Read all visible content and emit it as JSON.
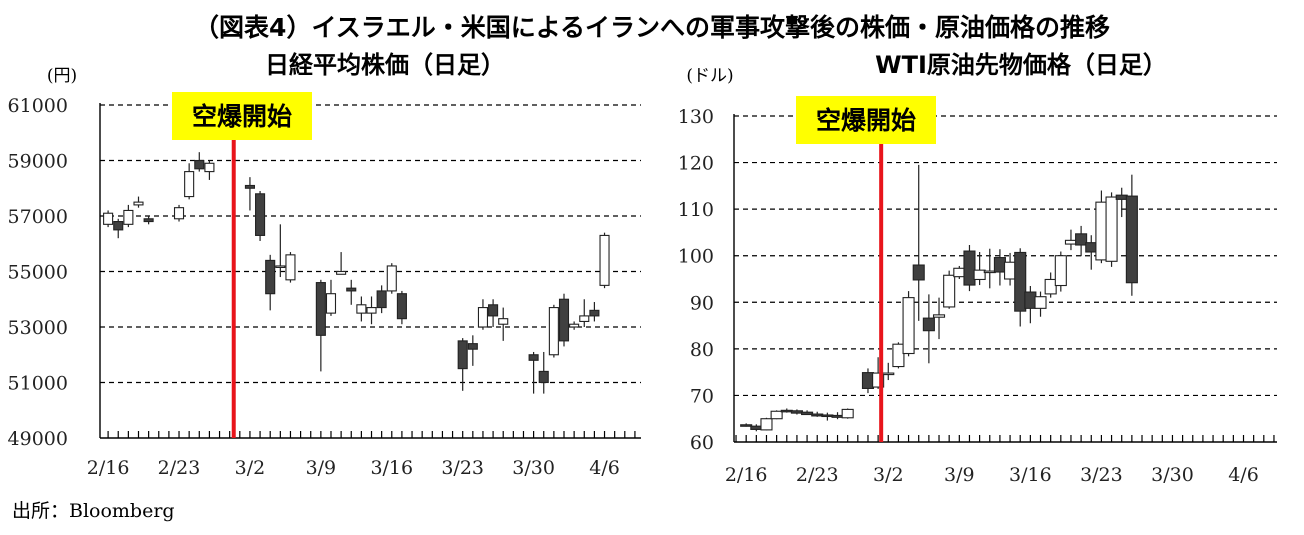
{
  "title": "（図表4）イスラエル・米国によるイランへの軍事攻撃後の株価・原油価格の推移",
  "source": "出所：Bloomberg",
  "colors": {
    "bullish_fill": "#ffffff",
    "bearish_fill": "#404040",
    "candle_stroke": "#222222",
    "event_line": "#e8141b",
    "event_box": "#ffff00",
    "grid": "#000000"
  },
  "chart_data": [
    {
      "type": "candlestick",
      "title": "日経平均株価（日足）",
      "ylabel": "(円)",
      "ylim": [
        49000,
        61000
      ],
      "yticks": [
        49000,
        51000,
        53000,
        55000,
        57000,
        59000,
        61000
      ],
      "xtick_labels": [
        "2/16",
        "2/23",
        "3/2",
        "3/9",
        "3/16",
        "3/23",
        "3/30",
        "4/6"
      ],
      "xtick_days": [
        0,
        7,
        14,
        21,
        28,
        35,
        42,
        49
      ],
      "day_range": [
        -0.8,
        52.6
      ],
      "grid": "dashed-horizontal",
      "annotation": {
        "label": "空爆開始",
        "day": 12.4
      },
      "candles": [
        {
          "day": 0,
          "o": 56700,
          "h": 57200,
          "l": 56600,
          "c": 57100
        },
        {
          "day": 1,
          "o": 56800,
          "h": 56900,
          "l": 56200,
          "c": 56500
        },
        {
          "day": 2,
          "o": 56700,
          "h": 57400,
          "l": 56600,
          "c": 57200
        },
        {
          "day": 3,
          "o": 57400,
          "h": 57700,
          "l": 57300,
          "c": 57500
        },
        {
          "day": 4,
          "o": 56900,
          "h": 57000,
          "l": 56700,
          "c": 56800
        },
        {
          "day": 7,
          "o": 56900,
          "h": 57400,
          "l": 56800,
          "c": 57300
        },
        {
          "day": 8,
          "o": 57700,
          "h": 58900,
          "l": 57600,
          "c": 58600
        },
        {
          "day": 9,
          "o": 59000,
          "h": 59300,
          "l": 58600,
          "c": 58700
        },
        {
          "day": 10,
          "o": 58600,
          "h": 59000,
          "l": 58300,
          "c": 58900
        },
        {
          "day": 14,
          "o": 58100,
          "h": 58400,
          "l": 57200,
          "c": 58000
        },
        {
          "day": 15,
          "o": 57800,
          "h": 57900,
          "l": 56100,
          "c": 56300
        },
        {
          "day": 16,
          "o": 55400,
          "h": 55600,
          "l": 53600,
          "c": 54200
        },
        {
          "day": 17,
          "o": 55200,
          "h": 56700,
          "l": 54800,
          "c": 55200
        },
        {
          "day": 18,
          "o": 54700,
          "h": 55700,
          "l": 54600,
          "c": 55600
        },
        {
          "day": 21,
          "o": 54600,
          "h": 54700,
          "l": 51400,
          "c": 52700
        },
        {
          "day": 22,
          "o": 53500,
          "h": 54700,
          "l": 53400,
          "c": 54200
        },
        {
          "day": 23,
          "o": 54900,
          "h": 55700,
          "l": 54900,
          "c": 55000
        },
        {
          "day": 24,
          "o": 54400,
          "h": 54700,
          "l": 53800,
          "c": 54300
        },
        {
          "day": 25,
          "o": 53500,
          "h": 54100,
          "l": 53200,
          "c": 53800
        },
        {
          "day": 26,
          "o": 53500,
          "h": 54100,
          "l": 53100,
          "c": 53700
        },
        {
          "day": 27,
          "o": 54300,
          "h": 54500,
          "l": 53500,
          "c": 53700
        },
        {
          "day": 28,
          "o": 54300,
          "h": 55300,
          "l": 54200,
          "c": 55200
        },
        {
          "day": 29,
          "o": 54200,
          "h": 54300,
          "l": 53100,
          "c": 53300
        },
        {
          "day": 35,
          "o": 52500,
          "h": 52600,
          "l": 50700,
          "c": 51500
        },
        {
          "day": 36,
          "o": 52400,
          "h": 52700,
          "l": 51600,
          "c": 52200
        },
        {
          "day": 37,
          "o": 53000,
          "h": 54000,
          "l": 52900,
          "c": 53700
        },
        {
          "day": 38,
          "o": 53800,
          "h": 54000,
          "l": 53000,
          "c": 53400
        },
        {
          "day": 39,
          "o": 53100,
          "h": 53700,
          "l": 52500,
          "c": 53300
        },
        {
          "day": 42,
          "o": 52000,
          "h": 52100,
          "l": 50600,
          "c": 51800
        },
        {
          "day": 43,
          "o": 51400,
          "h": 52100,
          "l": 50600,
          "c": 51000
        },
        {
          "day": 44,
          "o": 52000,
          "h": 53800,
          "l": 51900,
          "c": 53700
        },
        {
          "day": 45,
          "o": 54000,
          "h": 54200,
          "l": 52300,
          "c": 52500
        },
        {
          "day": 46,
          "o": 53000,
          "h": 53200,
          "l": 52900,
          "c": 53100
        },
        {
          "day": 47,
          "o": 53200,
          "h": 54000,
          "l": 53000,
          "c": 53400
        },
        {
          "day": 48,
          "o": 53600,
          "h": 53900,
          "l": 53200,
          "c": 53400
        },
        {
          "day": 49,
          "o": 54500,
          "h": 56400,
          "l": 54400,
          "c": 56300
        }
      ]
    },
    {
      "type": "candlestick",
      "title": "WTI原油先物価格（日足）",
      "ylabel": "(ドル)",
      "ylim": [
        60,
        130
      ],
      "yticks": [
        60,
        70,
        80,
        90,
        100,
        110,
        120,
        130
      ],
      "xtick_labels": [
        "2/16",
        "2/23",
        "3/2",
        "3/9",
        "3/16",
        "3/23",
        "3/30",
        "4/6"
      ],
      "xtick_days": [
        0,
        7,
        14,
        21,
        28,
        35,
        42,
        49
      ],
      "day_range": [
        -1.2,
        52.3
      ],
      "grid": "dashed-horizontal",
      "annotation": {
        "label": "空爆開始",
        "day": 13.3
      },
      "candles": [
        {
          "day": 0,
          "o": 63.7,
          "h": 64.0,
          "l": 63.3,
          "c": 63.6
        },
        {
          "day": 1,
          "o": 63.4,
          "h": 63.8,
          "l": 62.3,
          "c": 62.7
        },
        {
          "day": 2,
          "o": 62.6,
          "h": 65.2,
          "l": 62.5,
          "c": 65.0
        },
        {
          "day": 3,
          "o": 65.0,
          "h": 66.8,
          "l": 64.9,
          "c": 66.6
        },
        {
          "day": 4,
          "o": 66.8,
          "h": 67.2,
          "l": 66.3,
          "c": 66.5
        },
        {
          "day": 5,
          "o": 66.7,
          "h": 67.0,
          "l": 65.9,
          "c": 66.2
        },
        {
          "day": 6,
          "o": 66.4,
          "h": 66.8,
          "l": 65.8,
          "c": 65.9
        },
        {
          "day": 7,
          "o": 66.0,
          "h": 66.5,
          "l": 65.4,
          "c": 65.6
        },
        {
          "day": 8,
          "o": 65.8,
          "h": 66.3,
          "l": 64.6,
          "c": 65.5
        },
        {
          "day": 9,
          "o": 65.7,
          "h": 66.4,
          "l": 64.9,
          "c": 65.3
        },
        {
          "day": 10,
          "o": 65.2,
          "h": 67.2,
          "l": 65.0,
          "c": 67.0
        },
        {
          "day": 12,
          "o": 74.9,
          "h": 75.8,
          "l": 70.5,
          "c": 71.5
        },
        {
          "day": 13,
          "o": 71.8,
          "h": 78.2,
          "l": 71.4,
          "c": 74.8
        },
        {
          "day": 14,
          "o": 74.6,
          "h": 77.0,
          "l": 73.3,
          "c": 74.8
        },
        {
          "day": 15,
          "o": 76.2,
          "h": 81.4,
          "l": 75.8,
          "c": 81.0
        },
        {
          "day": 16,
          "o": 79.0,
          "h": 92.4,
          "l": 78.4,
          "c": 91.0
        },
        {
          "day": 17,
          "o": 98.0,
          "h": 119.5,
          "l": 86.0,
          "c": 94.8
        },
        {
          "day": 18,
          "o": 86.6,
          "h": 91.7,
          "l": 76.9,
          "c": 83.9
        },
        {
          "day": 19,
          "o": 86.8,
          "h": 91.0,
          "l": 82.1,
          "c": 87.3
        },
        {
          "day": 20,
          "o": 89.0,
          "h": 96.8,
          "l": 88.6,
          "c": 95.8
        },
        {
          "day": 21,
          "o": 95.5,
          "h": 97.8,
          "l": 95.0,
          "c": 97.3
        },
        {
          "day": 22,
          "o": 101.0,
          "h": 102.3,
          "l": 92.4,
          "c": 93.7
        },
        {
          "day": 23,
          "o": 94.9,
          "h": 100.8,
          "l": 93.7,
          "c": 96.9
        },
        {
          "day": 24,
          "o": 96.4,
          "h": 101.5,
          "l": 93.0,
          "c": 96.7
        },
        {
          "day": 25,
          "o": 99.6,
          "h": 101.4,
          "l": 93.6,
          "c": 96.5
        },
        {
          "day": 26,
          "o": 95.0,
          "h": 100.6,
          "l": 93.6,
          "c": 98.6
        },
        {
          "day": 27,
          "o": 100.7,
          "h": 101.6,
          "l": 84.8,
          "c": 88.1
        },
        {
          "day": 28,
          "o": 92.2,
          "h": 93.5,
          "l": 85.5,
          "c": 88.7
        },
        {
          "day": 29,
          "o": 88.7,
          "h": 92.3,
          "l": 86.9,
          "c": 91.2
        },
        {
          "day": 30,
          "o": 91.8,
          "h": 96.4,
          "l": 91.0,
          "c": 94.9
        },
        {
          "day": 31,
          "o": 93.6,
          "h": 100.9,
          "l": 92.3,
          "c": 100.0
        },
        {
          "day": 32,
          "o": 102.5,
          "h": 105.6,
          "l": 101.2,
          "c": 103.3
        },
        {
          "day": 33,
          "o": 104.7,
          "h": 106.4,
          "l": 99.9,
          "c": 102.3
        },
        {
          "day": 34,
          "o": 102.8,
          "h": 104.4,
          "l": 97.0,
          "c": 100.8
        },
        {
          "day": 35,
          "o": 99.1,
          "h": 114.0,
          "l": 98.4,
          "c": 111.5
        },
        {
          "day": 36,
          "o": 98.8,
          "h": 113.6,
          "l": 97.6,
          "c": 112.6
        },
        {
          "day": 37,
          "o": 113.0,
          "h": 114.6,
          "l": 108.3,
          "c": 112.1
        },
        {
          "day": 38,
          "o": 112.8,
          "h": 117.4,
          "l": 91.4,
          "c": 94.2
        }
      ]
    }
  ]
}
